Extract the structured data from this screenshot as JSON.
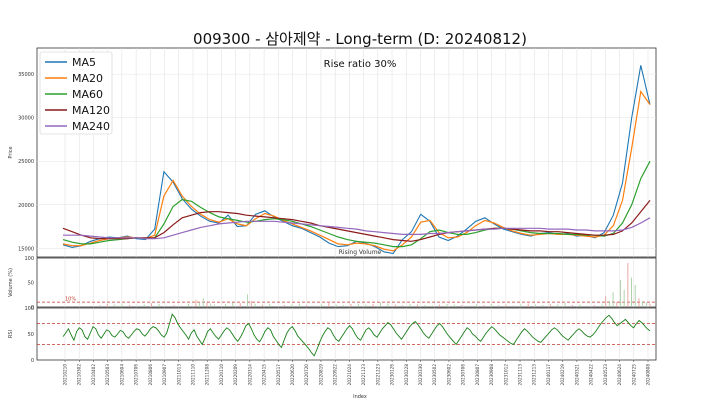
{
  "chart_data": {
    "type": "line",
    "title": "009300 - 삼아제약 - Long-term (D: 20240812)",
    "annotation": "Rise ratio 30%",
    "xlabel": "Index",
    "x_ticks": [
      "20210210",
      "20210302",
      "20210402",
      "20210503",
      "20210604",
      "20210706",
      "20210806",
      "20210907",
      "20211013",
      "20211110",
      "20211208",
      "20220110",
      "20220209",
      "20220314",
      "20220415",
      "20220517",
      "20220620",
      "20220720",
      "20220819",
      "20220922",
      "20221024",
      "20221123",
      "20221223",
      "20230126",
      "20230228",
      "20230330",
      "20230502",
      "20230602",
      "20230706",
      "20230807",
      "20230908",
      "20231012",
      "20231113",
      "20231213",
      "20240117",
      "20240219",
      "20240321",
      "20240422",
      "20240523",
      "20240624",
      "20240725",
      "20240808"
    ],
    "price_panel": {
      "ylabel": "Price",
      "ylim": [
        14000,
        38000
      ],
      "yticks": [
        15000,
        20000,
        25000,
        30000,
        35000
      ],
      "legend": {
        "position": "top-left"
      },
      "series": [
        {
          "name": "MA5",
          "color": "#1f77b4",
          "values": [
            15400,
            15100,
            15300,
            15800,
            16100,
            16300,
            16200,
            16400,
            16100,
            16000,
            17200,
            23800,
            22600,
            20700,
            19500,
            18700,
            18100,
            17900,
            18800,
            17500,
            17600,
            18900,
            19300,
            18600,
            18100,
            17600,
            17300,
            16800,
            16300,
            15600,
            15200,
            15300,
            15800,
            15600,
            15200,
            14600,
            14400,
            16000,
            16900,
            18900,
            18100,
            16300,
            15900,
            16400,
            17200,
            18100,
            18500,
            17800,
            17200,
            16900,
            16600,
            16400,
            16700,
            16800,
            16600,
            16700,
            16400,
            16500,
            16200,
            16800,
            18800,
            22500,
            30000,
            36000,
            31500
          ]
        },
        {
          "name": "MA20",
          "color": "#ff7f0e",
          "values": [
            15500,
            15300,
            15300,
            15600,
            15900,
            16100,
            16200,
            16300,
            16200,
            16100,
            16500,
            21000,
            22800,
            21000,
            19800,
            18900,
            18300,
            18000,
            18400,
            17800,
            17600,
            18400,
            19000,
            18700,
            18200,
            17800,
            17400,
            17000,
            16500,
            16000,
            15500,
            15400,
            15600,
            15500,
            15300,
            14900,
            14700,
            15400,
            16300,
            18000,
            18200,
            16800,
            16200,
            16300,
            16800,
            17600,
            18200,
            17900,
            17400,
            17000,
            16700,
            16500,
            16600,
            16700,
            16600,
            16600,
            16500,
            16400,
            16300,
            16500,
            17600,
            20500,
            26500,
            33000,
            31500
          ]
        },
        {
          "name": "MA60",
          "color": "#2ca02c",
          "values": [
            16000,
            15700,
            15500,
            15500,
            15700,
            15900,
            16000,
            16100,
            16200,
            16100,
            16200,
            17800,
            19800,
            20600,
            20400,
            19700,
            19100,
            18600,
            18400,
            18200,
            18000,
            18100,
            18300,
            18400,
            18300,
            18100,
            17800,
            17500,
            17100,
            16700,
            16300,
            16000,
            15800,
            15700,
            15600,
            15400,
            15200,
            15200,
            15400,
            16100,
            16900,
            17100,
            16800,
            16600,
            16600,
            16800,
            17100,
            17300,
            17300,
            17200,
            17000,
            16800,
            16700,
            16700,
            16700,
            16600,
            16600,
            16500,
            16500,
            16400,
            16700,
            17900,
            20000,
            23000,
            25000
          ]
        },
        {
          "name": "MA120",
          "color": "#8b1a1a",
          "values": [
            17300,
            16900,
            16500,
            16200,
            16100,
            16100,
            16100,
            16100,
            16200,
            16200,
            16200,
            16800,
            17700,
            18500,
            18800,
            19100,
            19200,
            19200,
            19100,
            19000,
            18800,
            18700,
            18600,
            18500,
            18400,
            18300,
            18100,
            17900,
            17600,
            17400,
            17200,
            17000,
            16800,
            16600,
            16400,
            16200,
            16000,
            15900,
            15800,
            16000,
            16300,
            16600,
            16800,
            16900,
            17000,
            17100,
            17200,
            17300,
            17300,
            17200,
            17100,
            17000,
            17000,
            16900,
            16900,
            16800,
            16700,
            16600,
            16500,
            16500,
            16600,
            17000,
            17900,
            19200,
            20500
          ]
        },
        {
          "name": "MA240",
          "color": "#9467bd",
          "values": [
            16500,
            16500,
            16500,
            16400,
            16300,
            16200,
            16200,
            16200,
            16200,
            16100,
            16100,
            16200,
            16500,
            16800,
            17100,
            17400,
            17600,
            17800,
            17900,
            18000,
            18100,
            18100,
            18100,
            18100,
            18000,
            17900,
            17800,
            17700,
            17600,
            17500,
            17400,
            17300,
            17200,
            17000,
            16900,
            16800,
            16700,
            16600,
            16600,
            16600,
            16700,
            16700,
            16800,
            16900,
            17000,
            17100,
            17200,
            17200,
            17300,
            17300,
            17300,
            17300,
            17300,
            17200,
            17200,
            17200,
            17100,
            17100,
            17000,
            17000,
            17000,
            17100,
            17400,
            17900,
            18500
          ]
        }
      ]
    },
    "volume_panel": {
      "ylabel": "Volume (%)",
      "ylim": [
        0,
        100
      ],
      "yticks": [
        0,
        50,
        100
      ],
      "overlay_label": "Rising Volume",
      "threshold": 10,
      "threshold_label": "10%",
      "spikes": [
        [
          10,
          4
        ],
        [
          12,
          6
        ],
        [
          14,
          5
        ],
        [
          16,
          5
        ],
        [
          18,
          4
        ],
        [
          20,
          3
        ],
        [
          22,
          5
        ],
        [
          24,
          8
        ],
        [
          26,
          6
        ],
        [
          28,
          3
        ],
        [
          30,
          4
        ],
        [
          32,
          3
        ],
        [
          34,
          6
        ],
        [
          36,
          15
        ],
        [
          37,
          10
        ],
        [
          38,
          18
        ],
        [
          39,
          9
        ],
        [
          40,
          7
        ],
        [
          41,
          5
        ],
        [
          44,
          6
        ],
        [
          46,
          9
        ],
        [
          48,
          8
        ],
        [
          50,
          26
        ],
        [
          51,
          12
        ],
        [
          52,
          7
        ],
        [
          54,
          5
        ],
        [
          56,
          6
        ],
        [
          60,
          4
        ],
        [
          62,
          5
        ],
        [
          64,
          7
        ],
        [
          66,
          4
        ],
        [
          68,
          3
        ],
        [
          70,
          5
        ],
        [
          72,
          8
        ],
        [
          74,
          5
        ],
        [
          76,
          4
        ],
        [
          78,
          6
        ],
        [
          80,
          7
        ],
        [
          82,
          5
        ],
        [
          84,
          6
        ],
        [
          86,
          9
        ],
        [
          88,
          7
        ],
        [
          90,
          5
        ],
        [
          92,
          4
        ],
        [
          94,
          6
        ],
        [
          96,
          5
        ],
        [
          98,
          4
        ],
        [
          100,
          3
        ],
        [
          102,
          5
        ],
        [
          104,
          6
        ],
        [
          106,
          5
        ],
        [
          108,
          4
        ],
        [
          110,
          3
        ],
        [
          112,
          5
        ],
        [
          114,
          4
        ],
        [
          116,
          6
        ],
        [
          118,
          4
        ],
        [
          120,
          5
        ],
        [
          122,
          3
        ],
        [
          124,
          5
        ],
        [
          126,
          7
        ],
        [
          128,
          5
        ],
        [
          130,
          4
        ],
        [
          132,
          6
        ],
        [
          134,
          5
        ],
        [
          136,
          8
        ],
        [
          138,
          4
        ],
        [
          140,
          5
        ],
        [
          142,
          3
        ],
        [
          144,
          4
        ],
        [
          146,
          5
        ],
        [
          147,
          22
        ],
        [
          148,
          12
        ],
        [
          149,
          30
        ],
        [
          150,
          10
        ],
        [
          151,
          55
        ],
        [
          152,
          35
        ],
        [
          153,
          90
        ],
        [
          154,
          60
        ],
        [
          155,
          45
        ],
        [
          156,
          18
        ],
        [
          157,
          12
        ],
        [
          158,
          9
        ],
        [
          159,
          7
        ]
      ]
    },
    "rsi_panel": {
      "ylabel": "RSI",
      "ylim": [
        0,
        100
      ],
      "yticks": [
        0,
        50,
        100
      ],
      "upper_threshold": 70,
      "lower_threshold": 30,
      "values": [
        45,
        52,
        60,
        48,
        38,
        55,
        62,
        58,
        45,
        40,
        52,
        64,
        60,
        48,
        42,
        50,
        58,
        55,
        47,
        44,
        50,
        57,
        54,
        46,
        42,
        48,
        55,
        60,
        58,
        50,
        46,
        52,
        60,
        64,
        62,
        56,
        48,
        44,
        52,
        70,
        88,
        82,
        70,
        62,
        55,
        48,
        40,
        52,
        58,
        46,
        38,
        30,
        42,
        55,
        60,
        52,
        45,
        40,
        48,
        56,
        62,
        58,
        50,
        42,
        36,
        44,
        54,
        66,
        70,
        60,
        48,
        40,
        35,
        44,
        55,
        62,
        58,
        46,
        38,
        30,
        24,
        38,
        52,
        60,
        64,
        56,
        46,
        40,
        34,
        28,
        22,
        14,
        8,
        20,
        34,
        46,
        55,
        62,
        58,
        48,
        40,
        36,
        44,
        52,
        60,
        66,
        60,
        50,
        42,
        38,
        48,
        58,
        62,
        56,
        48,
        44,
        52,
        60,
        66,
        72,
        68,
        60,
        52,
        46,
        40,
        48,
        56,
        64,
        70,
        74,
        68,
        60,
        52,
        46,
        42,
        50,
        58,
        66,
        70,
        64,
        56,
        48,
        42,
        36,
        30,
        38,
        46,
        54,
        62,
        58,
        50,
        46,
        40,
        36,
        44,
        52,
        58,
        64,
        60,
        54,
        48,
        44,
        40,
        36,
        32,
        30,
        38,
        46,
        54,
        60,
        56,
        50,
        44,
        40,
        36,
        34,
        40,
        46,
        52,
        58,
        62,
        58,
        52,
        46,
        42,
        38,
        44,
        50,
        56,
        60,
        56,
        50,
        46,
        44,
        48,
        54,
        62,
        70,
        76,
        82,
        86,
        80,
        72,
        66,
        70,
        74,
        78,
        72,
        66,
        62,
        70,
        76,
        72,
        66,
        60,
        56
      ]
    }
  }
}
